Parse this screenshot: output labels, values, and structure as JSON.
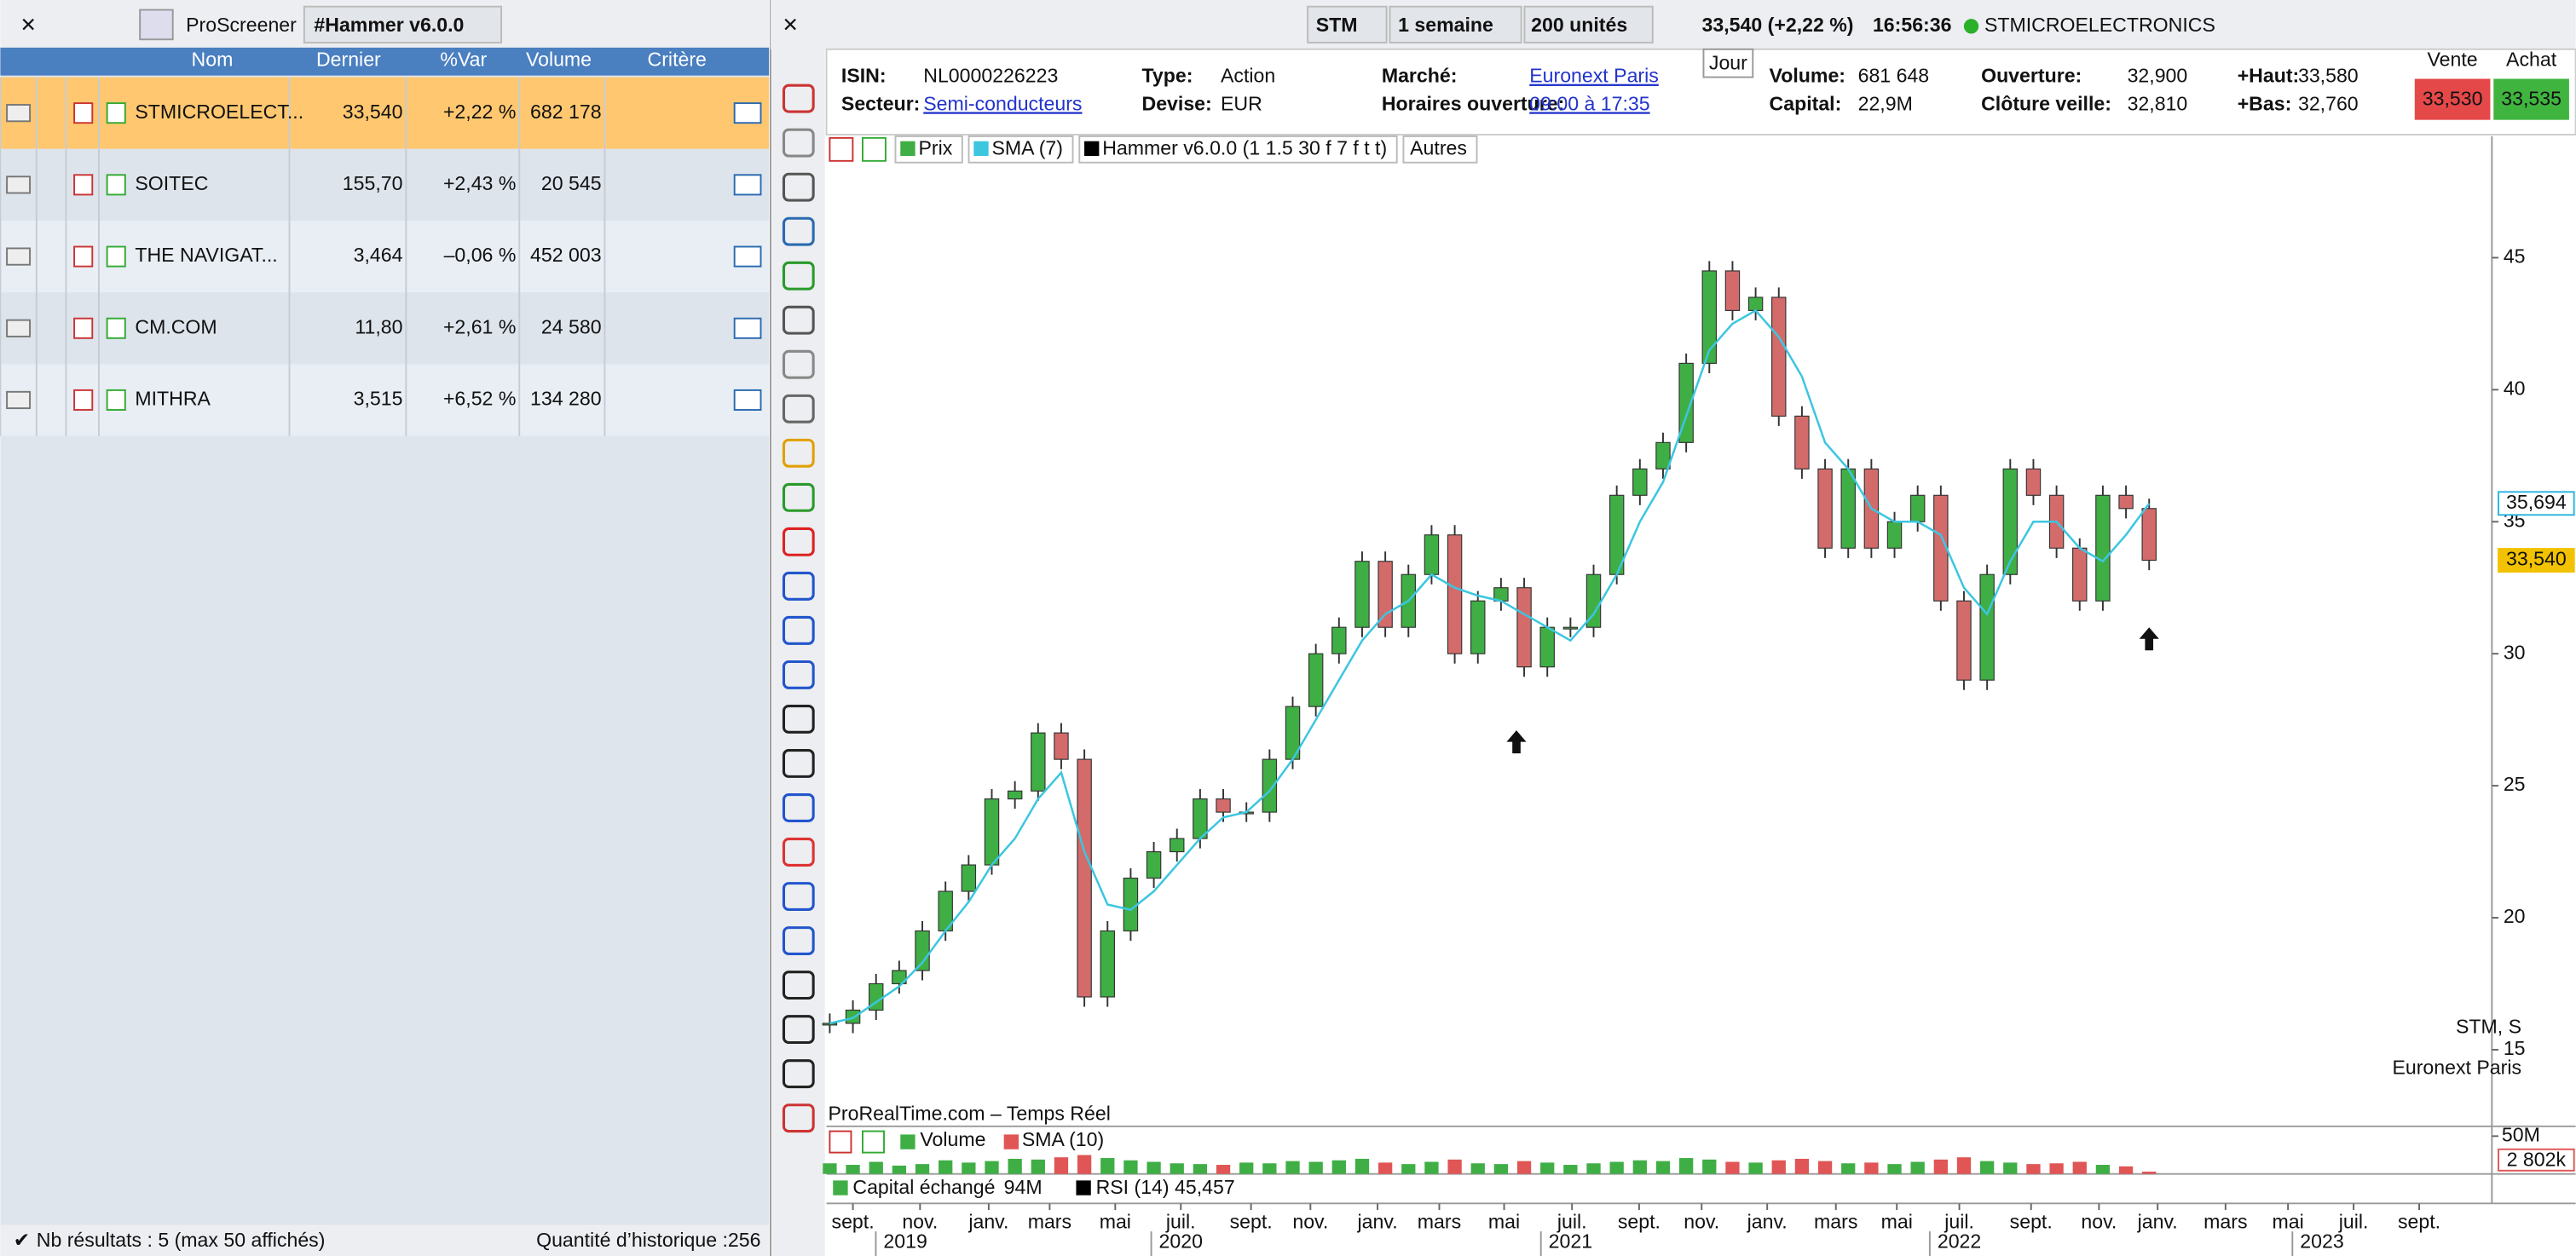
{
  "screener": {
    "title": "ProScreener",
    "screen": "#Hammer v6.0.0",
    "columns": [
      "Nom",
      "Dernier",
      "%Var",
      "Volume",
      "Critère"
    ],
    "rows": [
      [
        "STMICROELECT...",
        "33,540",
        "+2,22 %",
        "682 178"
      ],
      [
        "SOITEC",
        "155,70",
        "+2,43 %",
        "20 545"
      ],
      [
        "THE NAVIGAT...",
        "3,464",
        "–0,06 %",
        "452 003"
      ],
      [
        "CM.COM",
        "11,80",
        "+2,61 %",
        "24 580"
      ],
      [
        "MITHRA",
        "3,515",
        "+6,52 %",
        "134 280"
      ]
    ],
    "footer": "Nb résultats : 5 (max 50 affichés)",
    "history": "Quantité d’historique :256"
  },
  "toolbar": {
    "symbol": "STM",
    "period": "1 semaine",
    "units": "200 unités",
    "quote": "33,540 (+2,22 %)",
    "time": "16:56:36",
    "name": "STMICROELECTRONICS"
  },
  "info": {
    "fields": [
      [
        "ISIN:",
        "NL0000226223"
      ],
      [
        "Secteur:",
        "Semi-conducteurs"
      ],
      [
        "Type:",
        "Action"
      ],
      [
        "Devise:",
        "EUR"
      ],
      [
        "Marché:",
        "Euronext Paris"
      ],
      [
        "Horaires ouverture:",
        "09:00 à 17:35"
      ],
      [
        "Volume:",
        "681 648"
      ],
      [
        "Capital:",
        "22,9M"
      ],
      [
        "Ouverture:",
        "32,900"
      ],
      [
        "Clôture veille:",
        "32,810"
      ],
      [
        "+Haut:",
        "33,580"
      ],
      [
        "+Bas:",
        "32,760"
      ]
    ],
    "jour": "Jour",
    "sell_label": "Vente",
    "buy_label": "Achat",
    "sell": "33,530",
    "buy": "33,535"
  },
  "chart_data": {
    "type": "candlestick",
    "source": "ProRealTime.com – Temps Réel",
    "watermark": [
      "STM, S",
      "Euronext Paris"
    ],
    "indicators": [
      "Hammer v6.0.0 (1 1.5 30 f 7 f t t)"
    ],
    "more": "Autres",
    "up_color": "#3fae45",
    "down_color": "#d36b6b",
    "x": [
      0,
      3,
      6,
      9,
      12,
      15,
      18,
      21,
      24,
      27,
      30,
      33,
      36,
      39,
      42,
      45,
      48,
      51,
      54,
      57,
      60,
      63,
      66,
      69,
      72,
      75,
      78,
      81,
      84,
      87,
      90,
      93,
      96,
      99,
      102,
      105,
      108,
      111,
      114,
      117,
      120,
      123,
      126,
      129,
      132,
      135,
      138,
      141,
      144,
      147,
      150,
      153,
      156,
      159,
      162,
      165,
      168,
      171
    ],
    "series": [
      {
        "name": "Prix",
        "values": [
          16,
          16.5,
          17.5,
          18,
          19.5,
          21,
          22,
          24.5,
          24.8,
          27,
          26,
          17,
          19.5,
          21.5,
          22.5,
          23,
          24.5,
          24,
          24,
          26,
          28,
          30,
          31,
          33.5,
          31,
          33,
          34.5,
          30,
          32,
          32.5,
          29.5,
          31,
          31,
          33,
          36,
          37,
          38,
          41,
          44.5,
          43,
          43.5,
          39,
          37,
          34,
          37,
          34,
          35,
          36,
          32,
          29,
          33,
          37,
          36,
          34,
          32,
          36,
          35.5,
          33.54
        ]
      },
      {
        "name": "SMA (7)",
        "color": "#3cc6e0",
        "values": [
          16,
          16.2,
          16.8,
          17.4,
          18.3,
          19.5,
          20.6,
          22,
          23,
          24.5,
          25.5,
          22.5,
          20.5,
          20.3,
          21,
          22,
          23,
          23.8,
          24,
          24.8,
          26,
          27.5,
          29,
          30.5,
          31.5,
          32,
          33,
          32.5,
          32.2,
          32,
          31.5,
          31,
          30.5,
          31.5,
          33,
          35,
          36.5,
          39,
          41.5,
          42.5,
          43,
          42,
          40.5,
          38,
          37,
          35.5,
          35,
          35,
          34.5,
          32.5,
          31.5,
          33.5,
          35,
          35,
          34,
          33.5,
          34.5,
          35.69
        ]
      }
    ],
    "signals": [
      {
        "x": 89,
        "y": 26.6
      },
      {
        "x": 171,
        "y": 30.5
      }
    ],
    "price_labels": [
      {
        "value": 35.694,
        "label": "35,694",
        "color": "#2bb5e0"
      },
      {
        "value": 33.54,
        "label": "33,540",
        "color": "#f2c200"
      }
    ],
    "xlim": [
      0,
      215
    ],
    "ylim": [
      12.1,
      49.6
    ],
    "yticks": [
      15,
      20,
      25,
      30,
      35,
      40,
      45
    ],
    "xticks": [
      {
        "value": 3,
        "label": "sept."
      },
      {
        "value": 11.7,
        "label": "nov."
      },
      {
        "value": 20.6,
        "label": "janv."
      },
      {
        "value": 28.5,
        "label": "mars"
      },
      {
        "value": 37,
        "label": "mai"
      },
      {
        "value": 45.5,
        "label": "juil."
      },
      {
        "value": 54.6,
        "label": "sept."
      },
      {
        "value": 62.3,
        "label": "nov."
      },
      {
        "value": 71,
        "label": "janv."
      },
      {
        "value": 79,
        "label": "mars"
      },
      {
        "value": 87.4,
        "label": "mai"
      },
      {
        "value": 96.2,
        "label": "juil."
      },
      {
        "value": 104.9,
        "label": "sept."
      },
      {
        "value": 113,
        "label": "nov."
      },
      {
        "value": 121.5,
        "label": "janv."
      },
      {
        "value": 130.4,
        "label": "mars"
      },
      {
        "value": 138.3,
        "label": "mai"
      },
      {
        "value": 146.4,
        "label": "juil."
      },
      {
        "value": 155.7,
        "label": "sept."
      },
      {
        "value": 164.5,
        "label": "nov."
      },
      {
        "value": 172.1,
        "label": "janv."
      },
      {
        "value": 180.9,
        "label": "mars"
      },
      {
        "value": 189,
        "label": "mai"
      },
      {
        "value": 197.5,
        "label": "juil."
      },
      {
        "value": 206,
        "label": "sept."
      }
    ],
    "year_ticks": [
      {
        "value": 9.8,
        "label": "2019"
      },
      {
        "value": 45.5,
        "label": "2020"
      },
      {
        "value": 96,
        "label": "2021"
      },
      {
        "value": 146.4,
        "label": "2022"
      },
      {
        "value": 193.4,
        "label": "2023"
      }
    ],
    "volume": {
      "labels": [
        "Volume",
        "SMA (10)"
      ],
      "values": [
        14,
        12,
        16,
        11,
        13,
        18,
        15,
        17,
        20,
        19,
        22,
        25,
        21,
        18,
        16,
        14,
        13,
        12,
        15,
        14,
        17,
        16,
        18,
        20,
        15,
        13,
        16,
        19,
        14,
        13,
        17,
        15,
        12,
        14,
        16,
        18,
        17,
        21,
        19,
        16,
        15,
        18,
        20,
        17,
        14,
        15,
        13,
        16,
        19,
        22,
        17,
        15,
        13,
        14,
        16,
        12,
        10,
        3
      ],
      "ylim": [
        0,
        50
      ],
      "tick": {
        "value": 50,
        "label": "50M"
      },
      "last": "2 802k",
      "color": "#e05555"
    },
    "capital": "Capital échangé",
    "capital_value": "94M",
    "rsi": "RSI (14)",
    "rsi_value": "45,457"
  }
}
